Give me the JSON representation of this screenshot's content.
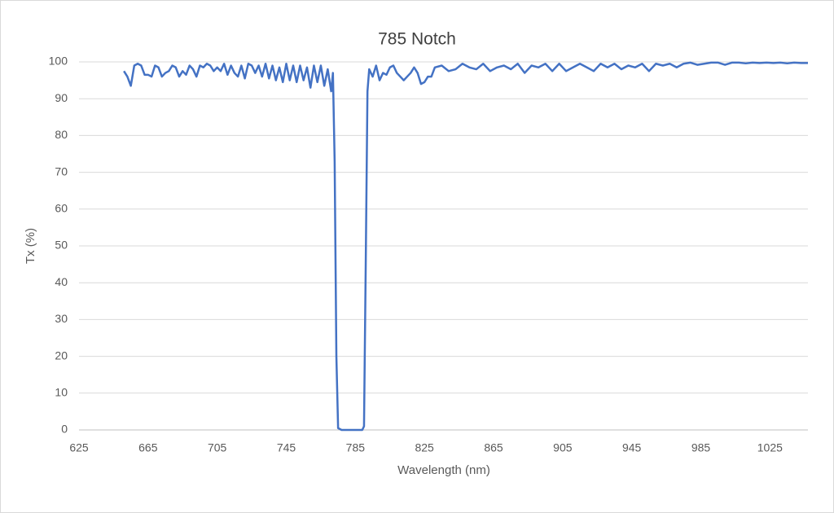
{
  "chart_data": {
    "type": "line",
    "title": "785 Notch",
    "x_label": "Wavelength (nm)",
    "y_label": "Tx (%)",
    "x": [
      651,
      653,
      655,
      657,
      659,
      661,
      663,
      665,
      667,
      669,
      671,
      673,
      675,
      677,
      679,
      681,
      683,
      685,
      687,
      689,
      691,
      693,
      695,
      697,
      699,
      701,
      703,
      705,
      707,
      709,
      711,
      713,
      715,
      717,
      719,
      721,
      723,
      725,
      727,
      729,
      731,
      733,
      735,
      737,
      739,
      741,
      743,
      745,
      747,
      749,
      751,
      753,
      755,
      757,
      759,
      761,
      763,
      765,
      767,
      769,
      771,
      772,
      773,
      774,
      775,
      777,
      781,
      785,
      789,
      790,
      791,
      792,
      793,
      795,
      797,
      799,
      801,
      803,
      805,
      807,
      809,
      811,
      813,
      815,
      817,
      819,
      821,
      823,
      825,
      827,
      829,
      831,
      835,
      839,
      843,
      847,
      851,
      855,
      859,
      863,
      867,
      871,
      875,
      879,
      883,
      887,
      891,
      895,
      899,
      903,
      907,
      911,
      915,
      919,
      923,
      927,
      931,
      935,
      939,
      943,
      947,
      951,
      955,
      959,
      963,
      967,
      971,
      975,
      979,
      983,
      987,
      991,
      995,
      999,
      1003,
      1007,
      1011,
      1015,
      1019,
      1023,
      1027,
      1031,
      1035,
      1039,
      1043,
      1047
    ],
    "series": [
      {
        "color": "#4472c4",
        "values": [
          97.5,
          96,
          93.5,
          99,
          99.5,
          99,
          96.5,
          96.5,
          96,
          99,
          98.5,
          96,
          97,
          97.5,
          99,
          98.5,
          96,
          97.5,
          96.5,
          99,
          98,
          96,
          99,
          98.5,
          99.5,
          99,
          97.5,
          98.5,
          97.5,
          99.5,
          96.5,
          99,
          97,
          96,
          99,
          95.5,
          99.5,
          99,
          97,
          99,
          96,
          99.5,
          95.5,
          99,
          95,
          98.5,
          94.5,
          99.5,
          95,
          99,
          94.5,
          99,
          95,
          98.5,
          93,
          99,
          94.5,
          99,
          93.5,
          98,
          92,
          97,
          73,
          20,
          0.5,
          0,
          0,
          0,
          0,
          1,
          45,
          92,
          98,
          96,
          99,
          95,
          97,
          96.5,
          98.5,
          99,
          97,
          96,
          95,
          96,
          97,
          98.5,
          97,
          94,
          94.5,
          96,
          96,
          98.5,
          99,
          97.5,
          98,
          99.5,
          98.5,
          98,
          99.5,
          97.5,
          98.5,
          99,
          98,
          99.5,
          97,
          99,
          98.5,
          99.5,
          97.5,
          99.5,
          97.5,
          98.5,
          99.5,
          98.5,
          97.5,
          99.5,
          98.5,
          99.5,
          98,
          99,
          98.5,
          99.5,
          97.5,
          99.5,
          99,
          99.5,
          98.5,
          99.5,
          99.8,
          99.2,
          99.5,
          99.8,
          99.8,
          99.2,
          99.8,
          99.8,
          99.6,
          99.8,
          99.7,
          99.8,
          99.7,
          99.8,
          99.6,
          99.8,
          99.7,
          99.7
        ]
      }
    ],
    "xlim": [
      625,
      1047
    ],
    "xticks": [
      625,
      665,
      705,
      745,
      785,
      825,
      865,
      905,
      945,
      985,
      1025
    ],
    "ylim": [
      0,
      100
    ],
    "yticks": [
      0,
      10,
      20,
      30,
      40,
      50,
      60,
      70,
      80,
      90,
      100
    ],
    "grid": true
  }
}
